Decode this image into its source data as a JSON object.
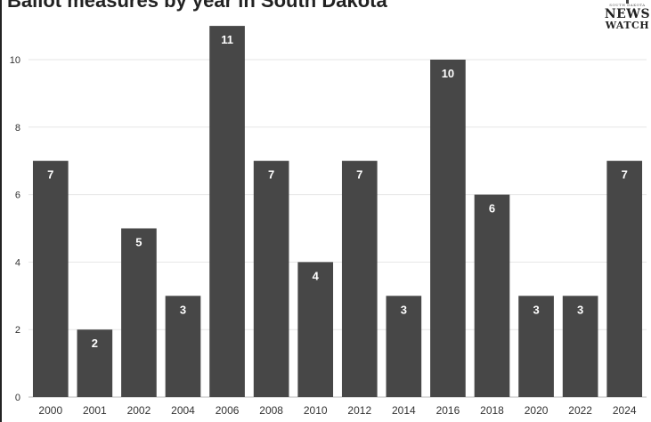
{
  "chart_data": {
    "type": "bar",
    "title": "Ballot measures by year in South Dakota",
    "categories": [
      "2000",
      "2001",
      "2002",
      "2004",
      "2006",
      "2008",
      "2010",
      "2012",
      "2014",
      "2016",
      "2018",
      "2020",
      "2022",
      "2024"
    ],
    "values": [
      7,
      2,
      5,
      3,
      11,
      7,
      4,
      7,
      3,
      10,
      6,
      3,
      3,
      7
    ],
    "ylim": [
      0,
      11
    ],
    "yticks": [
      0,
      2,
      4,
      6,
      8,
      10
    ],
    "grid": true,
    "bar_color": "#474747",
    "label_color": "#ffffff"
  },
  "logo": {
    "small_text": "SOUTH DAKOTA",
    "line1": "NEWS",
    "line2": "WATCH"
  }
}
